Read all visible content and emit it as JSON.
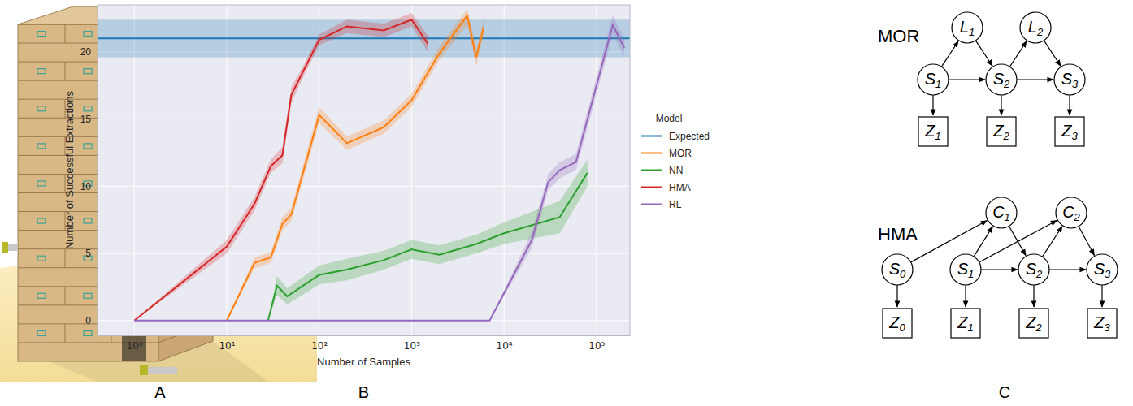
{
  "chart_data": {
    "type": "line",
    "x_label": "Number of Samples",
    "y_label": "Number of Successful Extractions",
    "legend_title": "Model",
    "legend": "right",
    "log": "x",
    "grid": true,
    "xlim": [
      0.4,
      230000
    ],
    "ylim": [
      -1.1,
      23.5
    ],
    "xticks": [
      {
        "value": 1,
        "label": "10⁰"
      },
      {
        "value": 10,
        "label": "10¹"
      },
      {
        "value": 100,
        "label": "10²"
      },
      {
        "value": 1000,
        "label": "10³"
      },
      {
        "value": 10000,
        "label": "10⁴"
      },
      {
        "value": 100000,
        "label": "10⁵"
      }
    ],
    "yticks": [
      0,
      5,
      10,
      15,
      20
    ],
    "series": [
      {
        "name": "Expected",
        "color": "#1f77b4",
        "x": [
          0.4,
          230000
        ],
        "values": [
          21,
          21
        ],
        "lower": [
          19.6,
          19.6
        ],
        "upper": [
          22.4,
          22.4
        ]
      },
      {
        "name": "MOR",
        "color": "#ff7f0e",
        "x": [
          10,
          20,
          30,
          40,
          50,
          100,
          200,
          500,
          1000,
          2000,
          4000,
          5000,
          6000
        ],
        "values": [
          0,
          4.3,
          4.7,
          7.2,
          7.9,
          15.3,
          13.2,
          14.4,
          16.4,
          19.9,
          22.7,
          19.6,
          21.8
        ],
        "lower": [
          0,
          3.9,
          4.3,
          6.7,
          7.4,
          14.7,
          12.7,
          13.9,
          15.9,
          19.4,
          22.0,
          19.0,
          21.2
        ],
        "upper": [
          0,
          4.7,
          5.1,
          7.7,
          8.4,
          15.9,
          13.7,
          14.9,
          16.9,
          20.4,
          23.2,
          20.2,
          22.4
        ]
      },
      {
        "name": "NN",
        "color": "#2ca02c",
        "x": [
          28,
          35,
          45,
          100,
          200,
          500,
          1000,
          2000,
          5000,
          10000,
          40000,
          80000
        ],
        "values": [
          0,
          2.6,
          1.8,
          3.4,
          3.8,
          4.5,
          5.3,
          4.9,
          5.7,
          6.5,
          7.7,
          11.0
        ],
        "lower": [
          0,
          1.9,
          1.2,
          2.7,
          3.0,
          3.8,
          4.6,
          4.2,
          5.0,
          5.7,
          6.5,
          10.0
        ],
        "upper": [
          0,
          3.3,
          2.4,
          4.1,
          4.6,
          5.2,
          6.0,
          5.6,
          6.4,
          7.3,
          8.9,
          12.0
        ]
      },
      {
        "name": "HMA",
        "color": "#d62728",
        "x": [
          1,
          10,
          20,
          30,
          40,
          50,
          70,
          100,
          200,
          500,
          1000,
          1500
        ],
        "values": [
          0,
          5.5,
          8.7,
          11.5,
          12.3,
          16.8,
          18.8,
          20.9,
          21.9,
          21.6,
          22.4,
          20.6
        ],
        "lower": [
          0,
          5.0,
          8.2,
          11.0,
          11.7,
          16.2,
          18.4,
          20.5,
          21.4,
          21.1,
          21.9,
          20.0
        ],
        "upper": [
          0,
          6.0,
          9.2,
          12.0,
          12.9,
          17.4,
          19.2,
          21.3,
          22.4,
          22.1,
          22.9,
          21.2
        ]
      },
      {
        "name": "RL",
        "color": "#9467bd",
        "x": [
          1,
          10,
          100,
          1000,
          7000,
          20000,
          30000,
          40000,
          60000,
          150000,
          200000
        ],
        "values": [
          0,
          0,
          0,
          0,
          0,
          6.0,
          10.3,
          11.2,
          11.8,
          22.0,
          20.3
        ],
        "lower": [
          0,
          0,
          0,
          0,
          0,
          5.4,
          9.7,
          10.6,
          11.2,
          21.3,
          19.7
        ],
        "upper": [
          0,
          0,
          0,
          0,
          0,
          6.6,
          10.9,
          11.8,
          12.4,
          22.7,
          20.9
        ]
      }
    ]
  },
  "panel_labels": [
    "A",
    "B",
    "C"
  ],
  "diagrams": [
    {
      "title": "MOR",
      "nodes": [
        {
          "label": "L",
          "sub": "1",
          "shape": "circle"
        },
        {
          "label": "L",
          "sub": "2",
          "shape": "circle"
        },
        {
          "label": "S",
          "sub": "1",
          "shape": "circle"
        },
        {
          "label": "S",
          "sub": "2",
          "shape": "circle"
        },
        {
          "label": "S",
          "sub": "3",
          "shape": "circle"
        },
        {
          "label": "Z",
          "sub": "1",
          "shape": "square"
        },
        {
          "label": "Z",
          "sub": "2",
          "shape": "square"
        },
        {
          "label": "Z",
          "sub": "3",
          "shape": "square"
        }
      ],
      "edges": [
        [
          2,
          0
        ],
        [
          0,
          3
        ],
        [
          3,
          1
        ],
        [
          1,
          4
        ],
        [
          2,
          3
        ],
        [
          3,
          4
        ],
        [
          2,
          5
        ],
        [
          3,
          6
        ],
        [
          4,
          7
        ]
      ]
    },
    {
      "title": "HMA",
      "nodes": [
        {
          "label": "C",
          "sub": "1",
          "shape": "circle"
        },
        {
          "label": "C",
          "sub": "2",
          "shape": "circle"
        },
        {
          "label": "S",
          "sub": "0",
          "shape": "circle"
        },
        {
          "label": "S",
          "sub": "1",
          "shape": "circle"
        },
        {
          "label": "S",
          "sub": "2",
          "shape": "circle"
        },
        {
          "label": "S",
          "sub": "3",
          "shape": "circle"
        },
        {
          "label": "Z",
          "sub": "0",
          "shape": "square"
        },
        {
          "label": "Z",
          "sub": "1",
          "shape": "square"
        },
        {
          "label": "Z",
          "sub": "2",
          "shape": "square"
        },
        {
          "label": "Z",
          "sub": "3",
          "shape": "square"
        }
      ],
      "edges": [
        [
          2,
          0
        ],
        [
          3,
          0
        ],
        [
          3,
          1
        ],
        [
          3,
          4
        ],
        [
          0,
          4
        ],
        [
          4,
          1
        ],
        [
          1,
          5
        ],
        [
          4,
          5
        ],
        [
          2,
          6
        ],
        [
          3,
          7
        ],
        [
          4,
          8
        ],
        [
          5,
          9
        ]
      ]
    }
  ]
}
